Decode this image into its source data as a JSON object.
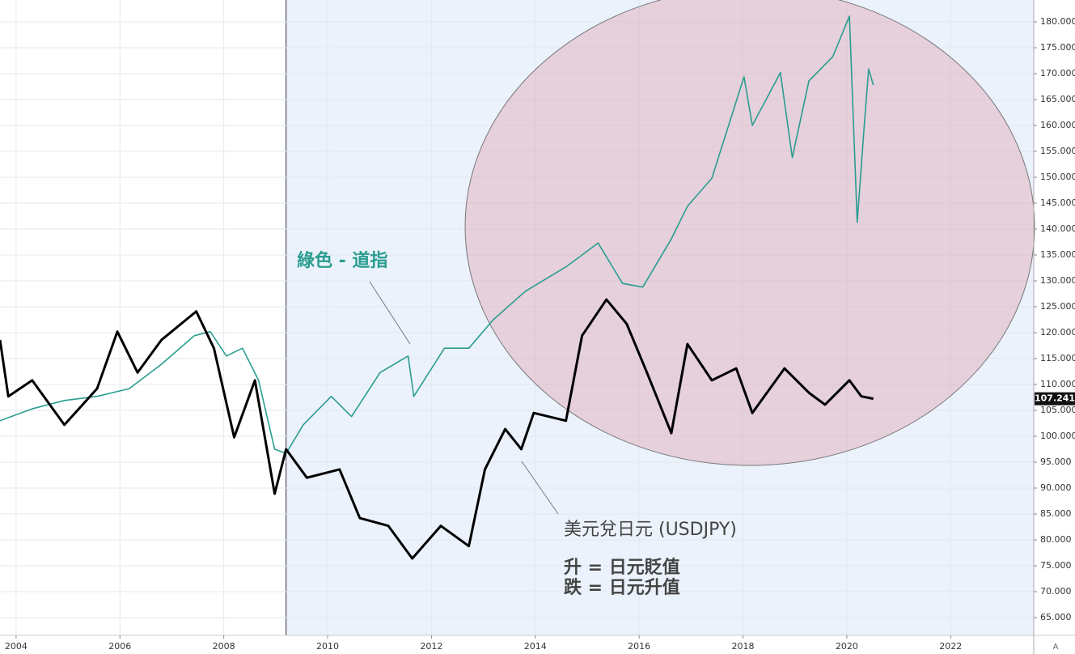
{
  "chart_data": {
    "type": "line",
    "series": [
      {
        "name": "美元兌日元 (USDJPY)",
        "color": "#000000",
        "x": [
          2003.69,
          2003.85,
          2004.31,
          2004.93,
          2005.56,
          2005.95,
          2006.34,
          2006.8,
          2007.47,
          2007.81,
          2008.2,
          2008.6,
          2008.98,
          2009.2,
          2009.6,
          2010.23,
          2010.62,
          2011.17,
          2011.63,
          2012.18,
          2012.72,
          2013.03,
          2013.42,
          2013.73,
          2013.97,
          2014.59,
          2014.9,
          2015.37,
          2015.76,
          2016.15,
          2016.62,
          2016.93,
          2017.4,
          2017.87,
          2018.18,
          2018.8,
          2019.27,
          2019.58,
          2020.05,
          2020.28,
          2020.51
        ],
        "values": [
          118.6,
          107.7,
          110.8,
          102.2,
          109.2,
          120.2,
          112.3,
          118.6,
          124.1,
          117,
          99.8,
          110.8,
          88.9,
          97.5,
          92,
          93.6,
          84.2,
          82.7,
          76.4,
          82.7,
          78.8,
          93.6,
          101.4,
          97.5,
          104.5,
          103,
          119.4,
          126.4,
          121.7,
          112.3,
          100.6,
          117.8,
          110.8,
          113.1,
          104.5,
          113.1,
          108.4,
          106.1,
          110.8,
          107.7,
          107.241
        ]
      },
      {
        "name": "綠色 - 道指",
        "color": "#2a9d8f",
        "x": [
          2003.69,
          2004.31,
          2004.93,
          2005.56,
          2006.18,
          2006.8,
          2007.43,
          2007.74,
          2008.05,
          2008.36,
          2008.67,
          2008.98,
          2009.2,
          2009.53,
          2010.07,
          2010.46,
          2011.01,
          2011.55,
          2011.66,
          2012.25,
          2012.72,
          2013.19,
          2013.81,
          2014.59,
          2015.21,
          2015.68,
          2016.07,
          2016.62,
          2016.93,
          2017.4,
          2018.02,
          2018.18,
          2018.72,
          2018.95,
          2019.27,
          2019.73,
          2020.05,
          2020.2,
          2020.33,
          2020.42,
          2020.51
        ],
        "values": [
          103,
          105.3,
          106.9,
          107.7,
          109.2,
          113.9,
          119.4,
          120.2,
          115.5,
          117,
          110.8,
          97.5,
          96.7,
          102.2,
          107.7,
          103.8,
          112.3,
          115.5,
          107.7,
          117,
          117,
          122.5,
          128,
          132.7,
          137.3,
          129.5,
          128.8,
          138.1,
          144.4,
          149.8,
          169.4,
          160,
          170.2,
          153.8,
          168.6,
          173.3,
          181.1,
          141.3,
          159.2,
          170.9,
          167.8
        ]
      }
    ],
    "annotations": [
      "升 = 日元貶值",
      "跌 = 日元升值"
    ],
    "last_value": 107.241,
    "highlight_start": 2009.2,
    "xlim": [
      2003.69,
      2023.6
    ],
    "xticks": [
      2004,
      2006,
      2008,
      2010,
      2012,
      2014,
      2016,
      2018,
      2020,
      2022
    ],
    "ylim": [
      61.56,
      184.22
    ],
    "yticks": [
      {
        "value": 65,
        "label": "65.000"
      },
      {
        "value": 70,
        "label": "70.000"
      },
      {
        "value": 75,
        "label": "75.000"
      },
      {
        "value": 80,
        "label": "80.000"
      },
      {
        "value": 85,
        "label": "85.000"
      },
      {
        "value": 90,
        "label": "90.000"
      },
      {
        "value": 95,
        "label": "95.000"
      },
      {
        "value": 100,
        "label": "100.000"
      },
      {
        "value": 105,
        "label": "105.000"
      },
      {
        "value": 110,
        "label": "110.000"
      },
      {
        "value": 115,
        "label": "115.000"
      },
      {
        "value": 120,
        "label": "120.000"
      },
      {
        "value": 125,
        "label": "125.000"
      },
      {
        "value": 130,
        "label": "130.000"
      },
      {
        "value": 135,
        "label": "135.000"
      },
      {
        "value": 140,
        "label": "140.000"
      },
      {
        "value": 145,
        "label": "145.000"
      },
      {
        "value": 150,
        "label": "150.000"
      },
      {
        "value": 155,
        "label": "155.000"
      },
      {
        "value": 160,
        "label": "160.000"
      },
      {
        "value": 165,
        "label": "165.000"
      },
      {
        "value": 170,
        "label": "170.000"
      },
      {
        "value": 175,
        "label": "175.000"
      },
      {
        "value": 180,
        "label": "180.000"
      }
    ],
    "axis_marker": "A",
    "grid": true
  }
}
